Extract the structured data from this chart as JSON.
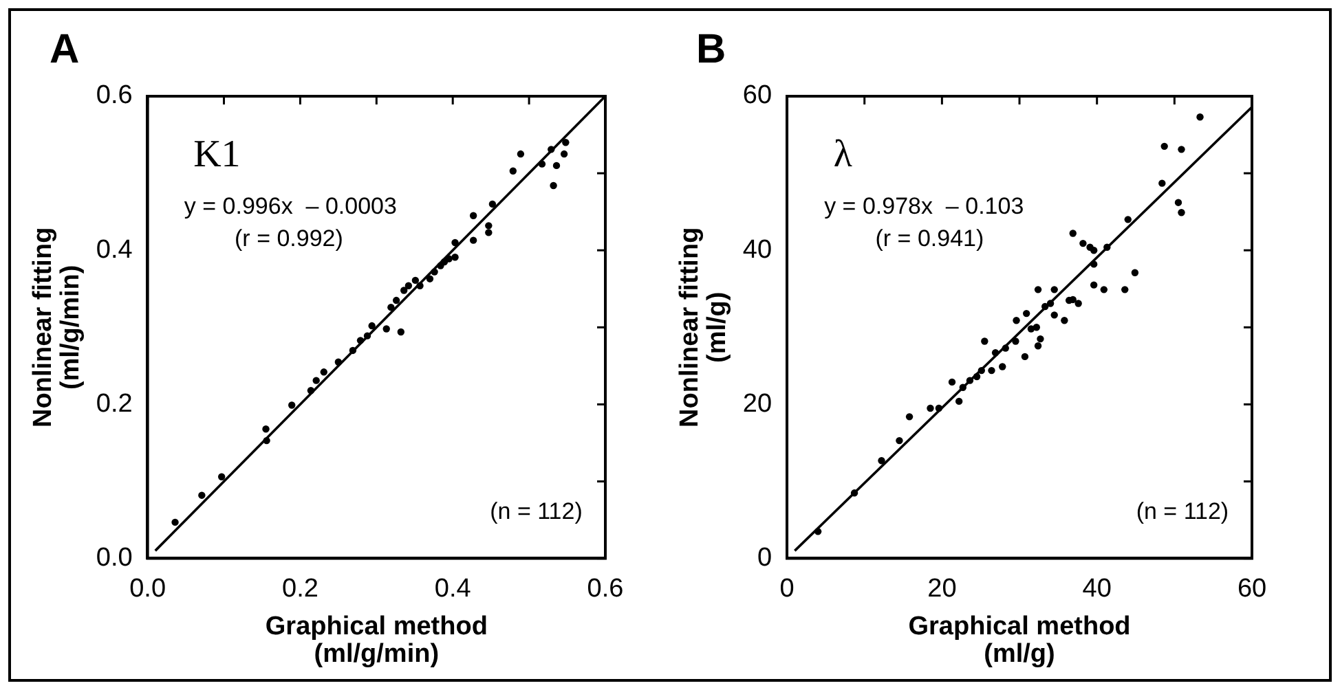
{
  "chart_data": [
    {
      "type": "scatter",
      "title": "A",
      "xlabel": "Graphical method (ml/g/min)",
      "ylabel": "Nonlinear fitting (ml/g/min)",
      "annotations": [
        "K1",
        "y = 0.996x  – 0.0003",
        "(r = 0.992)",
        "(n = 112)"
      ],
      "legend": false,
      "xlim": [
        0,
        0.6
      ],
      "ylim": [
        0,
        0.6
      ],
      "xticks": [
        {
          "value": 0,
          "label": "0.0"
        },
        {
          "value": 0.1,
          "label": null
        },
        {
          "value": 0.2,
          "label": "0.2"
        },
        {
          "value": 0.3,
          "label": null
        },
        {
          "value": 0.4,
          "label": "0.4"
        },
        {
          "value": 0.5,
          "label": null
        },
        {
          "value": 0.6,
          "label": "0.6"
        }
      ],
      "yticks": [
        {
          "value": 0,
          "label": "0.0"
        },
        {
          "value": 0.1,
          "label": null
        },
        {
          "value": 0.2,
          "label": "0.2"
        },
        {
          "value": 0.3,
          "label": null
        },
        {
          "value": 0.4,
          "label": "0.4"
        },
        {
          "value": 0.5,
          "label": null
        },
        {
          "value": 0.6,
          "label": "0.6"
        }
      ],
      "series": [
        {
          "type": "scatter",
          "marker": "circle",
          "color": "#000000",
          "x": [
            0.036,
            0.071,
            0.097,
            0.156,
            0.155,
            0.189,
            0.214,
            0.221,
            0.231,
            0.25,
            0.269,
            0.279,
            0.288,
            0.294,
            0.313,
            0.332,
            0.319,
            0.326,
            0.336,
            0.342,
            0.351,
            0.357,
            0.37,
            0.376,
            0.384,
            0.389,
            0.395,
            0.403,
            0.403,
            0.427,
            0.447,
            0.452,
            0.427,
            0.447,
            0.479,
            0.489,
            0.517,
            0.529,
            0.536,
            0.532,
            0.546,
            0.548
          ],
          "values": [
            0.047,
            0.082,
            0.106,
            0.153,
            0.168,
            0.199,
            0.218,
            0.231,
            0.242,
            0.255,
            0.27,
            0.283,
            0.289,
            0.302,
            0.298,
            0.294,
            0.326,
            0.335,
            0.348,
            0.354,
            0.361,
            0.354,
            0.363,
            0.372,
            0.38,
            0.385,
            0.389,
            0.391,
            0.41,
            0.445,
            0.432,
            0.46,
            0.413,
            0.423,
            0.503,
            0.525,
            0.512,
            0.531,
            0.51,
            0.484,
            0.525,
            0.54
          ]
        },
        {
          "type": "line",
          "marker": "none",
          "line_style": "solid",
          "color": "#000000",
          "x": [
            0.01,
            0.6
          ],
          "values": [
            0.01,
            0.6
          ]
        }
      ]
    },
    {
      "type": "scatter",
      "title": "B",
      "xlabel": "Graphical method (ml/g)",
      "ylabel": "Nonlinear fitting (ml/g)",
      "annotations": [
        "λ",
        "y = 0.978x  – 0.103",
        "(r = 0.941)",
        "(n = 112)"
      ],
      "legend": false,
      "xlim": [
        0,
        60
      ],
      "ylim": [
        0,
        60
      ],
      "xticks": [
        0,
        {
          "value": 10,
          "label": null
        },
        20,
        {
          "value": 30,
          "label": null
        },
        40,
        {
          "value": 50,
          "label": null
        },
        60
      ],
      "yticks": [
        0,
        {
          "value": 10,
          "label": null
        },
        20,
        {
          "value": 30,
          "label": null
        },
        40,
        {
          "value": 50,
          "label": null
        },
        60
      ],
      "series": [
        {
          "type": "scatter",
          "marker": "circle",
          "color": "#000000",
          "x": [
            4,
            8.7,
            12.2,
            14.5,
            15.8,
            18.5,
            19.6,
            21.3,
            22.2,
            22.7,
            23.6,
            24.5,
            25.1,
            25.5,
            26.4,
            27.8,
            26.9,
            28.2,
            29.5,
            29.6,
            30.7,
            30.9,
            31.5,
            32.2,
            32.4,
            32.7,
            32.4,
            33.3,
            34,
            34.5,
            34.5,
            35.8,
            36.4,
            36.9,
            37.6,
            36.9,
            38.2,
            39.1,
            39.6,
            39.6,
            39.6,
            40.9,
            41.3,
            43.6,
            44.9,
            44,
            48.7,
            50.9,
            53.3,
            48.4,
            50.5,
            50.9
          ],
          "values": [
            3.5,
            8.5,
            12.7,
            15.3,
            18.4,
            19.5,
            19.5,
            22.9,
            20.4,
            22.2,
            23.1,
            23.6,
            24.4,
            28.2,
            24.4,
            24.9,
            26.7,
            27.3,
            28.2,
            30.9,
            26.2,
            31.8,
            29.8,
            30,
            27.6,
            28.5,
            34.9,
            32.7,
            33.1,
            34.9,
            31.6,
            30.9,
            33.5,
            33.6,
            33.1,
            42.2,
            40.9,
            40.4,
            40,
            38.2,
            35.5,
            34.9,
            40.4,
            34.9,
            37.1,
            44,
            53.5,
            53.1,
            57.3,
            48.7,
            46.2,
            44.9
          ]
        },
        {
          "type": "line",
          "marker": "none",
          "line_style": "solid",
          "color": "#000000",
          "x": [
            1,
            60
          ],
          "values": [
            1,
            58.6
          ]
        }
      ]
    }
  ]
}
